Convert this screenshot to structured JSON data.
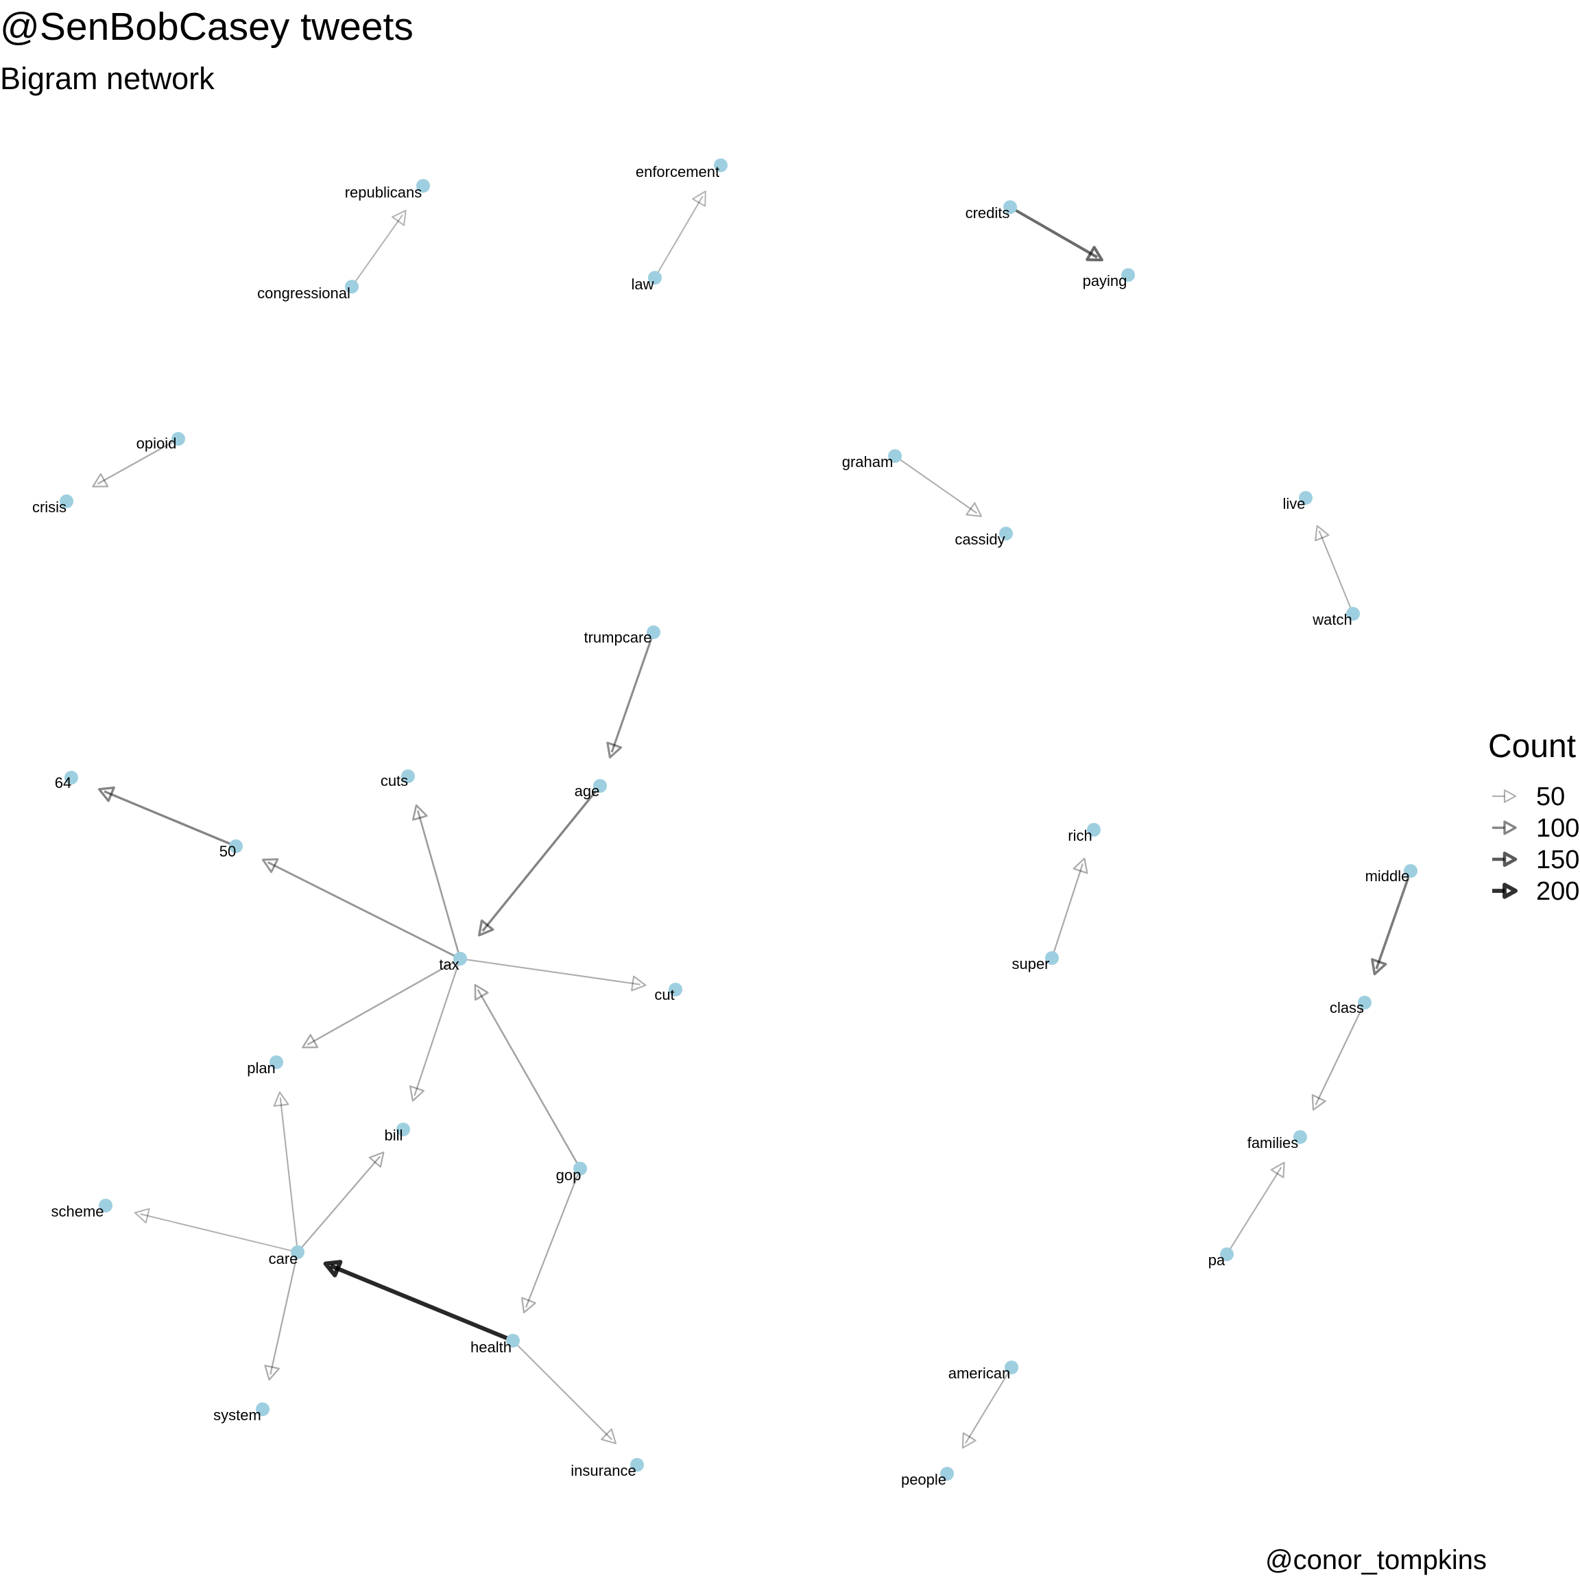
{
  "title": "@SenBobCasey tweets",
  "subtitle": "Bigram network",
  "caption": "@conor_tompkins",
  "legend": {
    "title": "Count",
    "entries": [
      {
        "label": "50",
        "count": 50
      },
      {
        "label": "100",
        "count": 100
      },
      {
        "label": "150",
        "count": 150
      },
      {
        "label": "200",
        "count": 200
      }
    ]
  },
  "colors": {
    "node": "#9ecfe0",
    "edge": "#000000"
  },
  "nodes": [
    {
      "id": "republicans",
      "label": "republicans"
    },
    {
      "id": "congressional",
      "label": "congressional"
    },
    {
      "id": "enforcement",
      "label": "enforcement"
    },
    {
      "id": "law",
      "label": "law"
    },
    {
      "id": "credits",
      "label": "credits"
    },
    {
      "id": "paying",
      "label": "paying"
    },
    {
      "id": "opioid",
      "label": "opioid"
    },
    {
      "id": "crisis",
      "label": "crisis"
    },
    {
      "id": "graham",
      "label": "graham"
    },
    {
      "id": "cassidy",
      "label": "cassidy"
    },
    {
      "id": "live",
      "label": "live"
    },
    {
      "id": "watch",
      "label": "watch"
    },
    {
      "id": "trumpcare",
      "label": "trumpcare"
    },
    {
      "id": "age",
      "label": "age"
    },
    {
      "id": "64",
      "label": "64"
    },
    {
      "id": "50",
      "label": "50"
    },
    {
      "id": "cuts",
      "label": "cuts"
    },
    {
      "id": "tax",
      "label": "tax"
    },
    {
      "id": "cut",
      "label": "cut"
    },
    {
      "id": "rich",
      "label": "rich"
    },
    {
      "id": "super",
      "label": "super"
    },
    {
      "id": "middle",
      "label": "middle"
    },
    {
      "id": "class",
      "label": "class"
    },
    {
      "id": "plan",
      "label": "plan"
    },
    {
      "id": "bill",
      "label": "bill"
    },
    {
      "id": "gop",
      "label": "gop"
    },
    {
      "id": "scheme",
      "label": "scheme"
    },
    {
      "id": "care",
      "label": "care"
    },
    {
      "id": "health",
      "label": "health"
    },
    {
      "id": "system",
      "label": "system"
    },
    {
      "id": "insurance",
      "label": "insurance"
    },
    {
      "id": "families",
      "label": "families"
    },
    {
      "id": "pa",
      "label": "pa"
    },
    {
      "id": "american",
      "label": "american"
    },
    {
      "id": "people",
      "label": "people"
    }
  ],
  "edges": [
    {
      "from": "congressional",
      "to": "republicans",
      "count": 45
    },
    {
      "from": "law",
      "to": "enforcement",
      "count": 45
    },
    {
      "from": "credits",
      "to": "paying",
      "count": 130
    },
    {
      "from": "opioid",
      "to": "crisis",
      "count": 55
    },
    {
      "from": "graham",
      "to": "cassidy",
      "count": 50
    },
    {
      "from": "watch",
      "to": "live",
      "count": 50
    },
    {
      "from": "trumpcare",
      "to": "age",
      "count": 90
    },
    {
      "from": "age",
      "to": "tax",
      "count": 100
    },
    {
      "from": "50",
      "to": "64",
      "count": 100
    },
    {
      "from": "tax",
      "to": "50",
      "count": 80
    },
    {
      "from": "tax",
      "to": "cuts",
      "count": 70
    },
    {
      "from": "tax",
      "to": "cut",
      "count": 50
    },
    {
      "from": "tax",
      "to": "plan",
      "count": 60
    },
    {
      "from": "tax",
      "to": "bill",
      "count": 55
    },
    {
      "from": "gop",
      "to": "tax",
      "count": 65
    },
    {
      "from": "gop",
      "to": "health",
      "count": 55
    },
    {
      "from": "super",
      "to": "rich",
      "count": 55
    },
    {
      "from": "middle",
      "to": "class",
      "count": 110
    },
    {
      "from": "class",
      "to": "families",
      "count": 55
    },
    {
      "from": "pa",
      "to": "families",
      "count": 50
    },
    {
      "from": "care",
      "to": "plan",
      "count": 50
    },
    {
      "from": "care",
      "to": "bill",
      "count": 55
    },
    {
      "from": "care",
      "to": "scheme",
      "count": 45
    },
    {
      "from": "care",
      "to": "system",
      "count": 55
    },
    {
      "from": "health",
      "to": "care",
      "count": 210
    },
    {
      "from": "health",
      "to": "insurance",
      "count": 50
    },
    {
      "from": "american",
      "to": "people",
      "count": 50
    }
  ]
}
